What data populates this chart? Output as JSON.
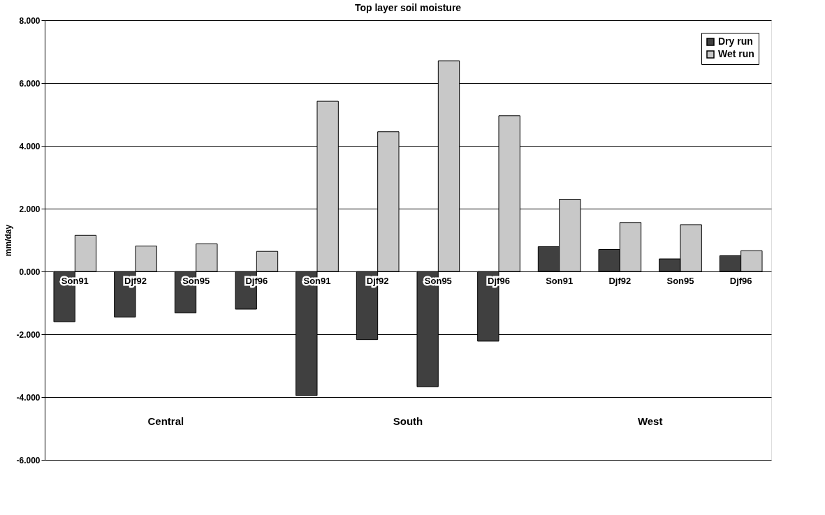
{
  "chart_data": {
    "type": "bar",
    "title": "Top layer soil moisture",
    "ylabel": "mm/day",
    "categories": [
      "Son91",
      "Djf92",
      "Son95",
      "Djf96",
      "Son91",
      "Djf92",
      "Son95",
      "Djf96",
      "Son91",
      "Djf92",
      "Son95",
      "Djf96"
    ],
    "series": [
      {
        "name": "Dry run",
        "color": "#404040",
        "values": [
          -1.6,
          -1.45,
          -1.32,
          -1.2,
          -3.95,
          -2.17,
          -3.67,
          -2.22,
          0.79,
          0.7,
          0.4,
          0.5
        ]
      },
      {
        "name": "Wet run",
        "color": "#c8c8c8",
        "values": [
          1.15,
          0.81,
          0.88,
          0.64,
          5.42,
          4.45,
          6.71,
          4.96,
          2.3,
          1.56,
          1.49,
          0.66
        ]
      }
    ],
    "ylim": [
      -6,
      8
    ],
    "yticks": [
      {
        "value": -6,
        "label": "-6.000"
      },
      {
        "value": -4,
        "label": "-4.000"
      },
      {
        "value": -2,
        "label": "-2.000"
      },
      {
        "value": 0,
        "label": "0.000"
      },
      {
        "value": 2,
        "label": "2.000"
      },
      {
        "value": 4,
        "label": "4.000"
      },
      {
        "value": 6,
        "label": "6.000"
      },
      {
        "value": 8,
        "label": "8.000"
      }
    ],
    "annotations": [
      "Central",
      "South",
      "West"
    ],
    "grid": "y",
    "legend": "top right"
  }
}
